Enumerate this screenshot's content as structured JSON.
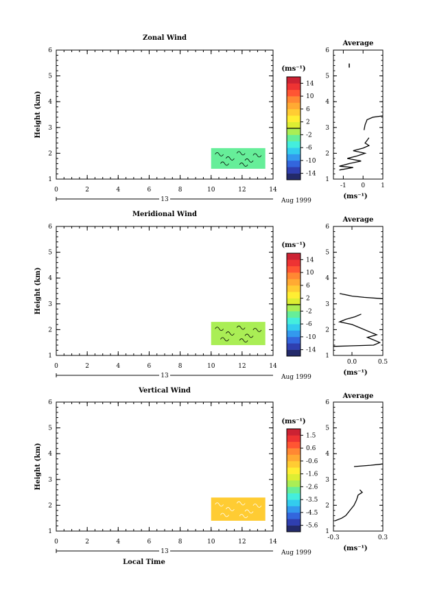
{
  "chart_data": [
    {
      "type": "heatmap",
      "title": "Zonal Wind",
      "ylabel": "Height (km)",
      "xlim": [
        0,
        14
      ],
      "ylim": [
        1,
        6
      ],
      "x_ticks": [
        "0",
        "2",
        "4",
        "6",
        "8",
        "10",
        "12",
        "14"
      ],
      "y_ticks": [
        "1",
        "2",
        "3",
        "4",
        "5",
        "6"
      ],
      "date_label": "13",
      "date_suffix": "Aug 1999",
      "colorbar": {
        "unit": "(ms⁻¹)",
        "labels": [
          "14",
          "10",
          "6",
          "2",
          "-2",
          "-6",
          "-10",
          "-14"
        ],
        "range": [
          -16,
          16
        ],
        "line_at": 0
      },
      "data_region": {
        "x": [
          10.0,
          13.5
        ],
        "y": [
          1.4,
          2.2
        ],
        "value": -3
      },
      "average": {
        "title": "Average",
        "xlabel": "(ms⁻¹)",
        "xlim": [
          -1.5,
          1
        ],
        "ylim": [
          1,
          6
        ],
        "x_ticks": [
          "-1",
          "0",
          "1"
        ],
        "y_ticks": [
          "1",
          "2",
          "3",
          "4",
          "5",
          "6"
        ],
        "profile": [
          {
            "h": 1.35,
            "v": -1.2
          },
          {
            "h": 1.45,
            "v": -0.5
          },
          {
            "h": 1.5,
            "v": -1.2
          },
          {
            "h": 1.6,
            "v": -0.7
          },
          {
            "h": 1.7,
            "v": -0.1
          },
          {
            "h": 1.8,
            "v": -0.8
          },
          {
            "h": 1.9,
            "v": -0.3
          },
          {
            "h": 2.0,
            "v": 0.1
          },
          {
            "h": 2.1,
            "v": -0.5
          },
          {
            "h": 2.2,
            "v": 0.0
          },
          {
            "h": 2.3,
            "v": 0.3
          },
          {
            "h": 2.4,
            "v": 0.1
          },
          {
            "h": 2.5,
            "v": 0.2
          },
          {
            "h": 2.6,
            "v": 0.3
          }
        ],
        "profile2": [
          {
            "h": 2.9,
            "v": 0.05
          },
          {
            "h": 3.1,
            "v": 0.1
          },
          {
            "h": 3.3,
            "v": 0.2
          },
          {
            "h": 3.4,
            "v": 0.5
          },
          {
            "h": 3.45,
            "v": 1.0
          }
        ],
        "dot": {
          "h": 5.4,
          "v": -0.7
        }
      }
    },
    {
      "type": "heatmap",
      "title": "Meridional Wind",
      "ylabel": "Height (km)",
      "xlim": [
        0,
        14
      ],
      "ylim": [
        1,
        6
      ],
      "x_ticks": [
        "0",
        "2",
        "4",
        "6",
        "8",
        "10",
        "12",
        "14"
      ],
      "y_ticks": [
        "1",
        "2",
        "3",
        "4",
        "5",
        "6"
      ],
      "date_label": "13",
      "date_suffix": "Aug 1999",
      "colorbar": {
        "unit": "(ms⁻¹)",
        "labels": [
          "14",
          "10",
          "6",
          "2",
          "-2",
          "-6",
          "-10",
          "-14"
        ],
        "range": [
          -16,
          16
        ],
        "line_at": 0
      },
      "data_region": {
        "x": [
          10.0,
          13.5
        ],
        "y": [
          1.4,
          2.3
        ],
        "value": -2
      },
      "average": {
        "title": "Average",
        "xlabel": "(ms⁻¹)",
        "xlim": [
          -0.3,
          0.5
        ],
        "ylim": [
          1,
          6
        ],
        "x_ticks": [
          "0.0",
          "0.5"
        ],
        "x_tick_values": [
          0.0,
          0.5
        ],
        "y_ticks": [
          "1",
          "2",
          "3",
          "4",
          "5",
          "6"
        ],
        "profile": [
          {
            "h": 1.35,
            "v": -0.3
          },
          {
            "h": 1.4,
            "v": 0.35
          },
          {
            "h": 1.5,
            "v": 0.45
          },
          {
            "h": 1.6,
            "v": 0.35
          },
          {
            "h": 1.7,
            "v": 0.25
          },
          {
            "h": 1.8,
            "v": 0.4
          },
          {
            "h": 1.9,
            "v": 0.3
          },
          {
            "h": 2.0,
            "v": 0.2
          },
          {
            "h": 2.1,
            "v": 0.1
          },
          {
            "h": 2.2,
            "v": 0.0
          },
          {
            "h": 2.3,
            "v": -0.2
          },
          {
            "h": 2.4,
            "v": -0.1
          },
          {
            "h": 2.5,
            "v": 0.05
          },
          {
            "h": 2.6,
            "v": 0.15
          }
        ],
        "profile2": [
          {
            "h": 3.2,
            "v": 0.5
          },
          {
            "h": 3.25,
            "v": 0.2
          },
          {
            "h": 3.3,
            "v": 0.0
          },
          {
            "h": 3.4,
            "v": -0.2
          }
        ]
      }
    },
    {
      "type": "heatmap",
      "title": "Vertical Wind",
      "ylabel": "Height (km)",
      "xlabel": "Local Time",
      "xlim": [
        0,
        14
      ],
      "ylim": [
        1,
        6
      ],
      "x_ticks": [
        "0",
        "2",
        "4",
        "6",
        "8",
        "10",
        "12",
        "14"
      ],
      "y_ticks": [
        "1",
        "2",
        "3",
        "4",
        "5",
        "6"
      ],
      "date_label": "13",
      "date_suffix": "Aug 1999",
      "colorbar": {
        "unit": "(ms⁻¹)",
        "labels": [
          "1.5",
          "0.6",
          "-0.6",
          "-1.6",
          "-2.6",
          "-3.5",
          "-4.5",
          "-5.6"
        ],
        "range": [
          -6,
          2
        ]
      },
      "data_region": {
        "x": [
          10.0,
          13.5
        ],
        "y": [
          1.4,
          2.3
        ],
        "value": -0.8
      },
      "average": {
        "title": "Average",
        "xlabel": "(ms⁻¹)",
        "xlim": [
          -0.3,
          0.3
        ],
        "ylim": [
          1,
          6
        ],
        "x_ticks": [
          "-0.3",
          "0.3"
        ],
        "x_tick_values": [
          -0.3,
          0.3
        ],
        "y_ticks": [
          "1",
          "2",
          "3",
          "4",
          "5",
          "6"
        ],
        "profile": [
          {
            "h": 1.4,
            "v": -0.28
          },
          {
            "h": 1.5,
            "v": -0.2
          },
          {
            "h": 1.6,
            "v": -0.15
          },
          {
            "h": 1.8,
            "v": -0.1
          },
          {
            "h": 2.0,
            "v": -0.05
          },
          {
            "h": 2.2,
            "v": -0.02
          },
          {
            "h": 2.4,
            "v": 0.0
          },
          {
            "h": 2.5,
            "v": 0.05
          },
          {
            "h": 2.6,
            "v": 0.02
          }
        ],
        "profile2": [
          {
            "h": 3.5,
            "v": -0.05
          },
          {
            "h": 3.55,
            "v": 0.15
          },
          {
            "h": 3.6,
            "v": 0.3
          }
        ]
      }
    }
  ]
}
